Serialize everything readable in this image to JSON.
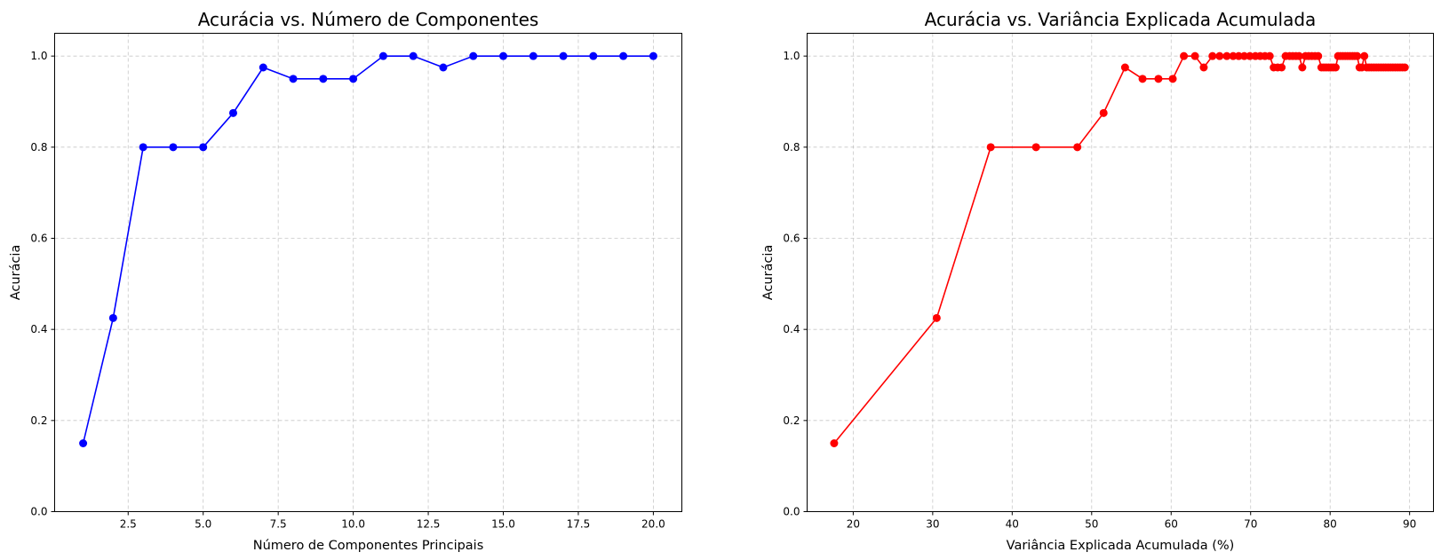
{
  "chart_data": [
    {
      "type": "line",
      "title": "Acurácia vs. Número de Componentes",
      "xlabel": "Número de Componentes Principais",
      "ylabel": "Acurácia",
      "xlim": [
        0.05,
        20.95
      ],
      "ylim": [
        0,
        1.05
      ],
      "xticks": [
        2.5,
        5.0,
        7.5,
        10.0,
        12.5,
        15.0,
        17.5,
        20.0
      ],
      "xtick_labels": [
        "2.5",
        "5.0",
        "7.5",
        "10.0",
        "12.5",
        "15.0",
        "17.5",
        "20.0"
      ],
      "yticks": [
        0.0,
        0.2,
        0.4,
        0.6,
        0.8,
        1.0
      ],
      "ytick_labels": [
        "0.0",
        "0.2",
        "0.4",
        "0.6",
        "0.8",
        "1.0"
      ],
      "grid": true,
      "series": [
        {
          "color": "#0000ff",
          "marker": "circle",
          "x": [
            1,
            2,
            3,
            4,
            5,
            6,
            7,
            8,
            9,
            10,
            11,
            12,
            13,
            14,
            15,
            16,
            17,
            18,
            19,
            20
          ],
          "y": [
            0.15,
            0.425,
            0.8,
            0.8,
            0.8,
            0.875,
            0.975,
            0.95,
            0.95,
            0.95,
            1.0,
            1.0,
            0.975,
            1.0,
            1.0,
            1.0,
            1.0,
            1.0,
            1.0,
            1.0
          ]
        }
      ]
    },
    {
      "type": "line",
      "title": "Acurácia vs. Variância Explicada Acumulada",
      "xlabel": "Variância Explicada Acumulada (%)",
      "ylabel": "Acurácia",
      "xlim": [
        14.2,
        93.0
      ],
      "ylim": [
        0,
        1.05
      ],
      "xticks": [
        20,
        30,
        40,
        50,
        60,
        70,
        80,
        90
      ],
      "xtick_labels": [
        "20",
        "30",
        "40",
        "50",
        "60",
        "70",
        "80",
        "90"
      ],
      "yticks": [
        0.0,
        0.2,
        0.4,
        0.6,
        0.8,
        1.0
      ],
      "ytick_labels": [
        "0.0",
        "0.2",
        "0.4",
        "0.6",
        "0.8",
        "1.0"
      ],
      "grid": true,
      "series": [
        {
          "color": "#ff0000",
          "marker": "circle",
          "x": [
            17.6,
            30.5,
            37.3,
            43.0,
            48.2,
            51.5,
            54.2,
            56.4,
            58.4,
            60.2,
            61.6,
            63.0,
            64.1,
            65.2,
            66.1,
            67.0,
            67.8,
            68.5,
            69.2,
            69.9,
            70.6,
            71.2,
            71.8,
            72.4,
            72.9,
            73.4,
            73.9,
            74.4,
            74.9,
            75.3,
            75.7,
            76.1,
            76.5,
            76.9,
            77.3,
            77.7,
            78.1,
            78.5,
            78.9,
            79.2,
            79.5,
            79.8,
            80.1,
            80.4,
            80.7,
            81.0,
            81.3,
            81.6,
            81.9,
            82.2,
            82.5,
            82.8,
            83.1,
            83.4,
            83.7,
            84.0,
            84.3,
            84.6,
            84.9,
            85.2,
            85.5,
            85.8,
            86.1,
            86.4,
            86.7,
            87.0,
            87.3,
            87.6,
            87.9,
            88.2,
            88.5,
            88.8,
            89.1,
            89.4
          ],
          "y": [
            0.15,
            0.425,
            0.8,
            0.8,
            0.8,
            0.875,
            0.975,
            0.95,
            0.95,
            0.95,
            1.0,
            1.0,
            0.975,
            1.0,
            1.0,
            1.0,
            1.0,
            1.0,
            1.0,
            1.0,
            1.0,
            1.0,
            1.0,
            1.0,
            0.975,
            0.975,
            0.975,
            1.0,
            1.0,
            1.0,
            1.0,
            1.0,
            0.975,
            1.0,
            1.0,
            1.0,
            1.0,
            1.0,
            0.975,
            0.975,
            0.975,
            0.975,
            0.975,
            0.975,
            0.975,
            1.0,
            1.0,
            1.0,
            1.0,
            1.0,
            1.0,
            1.0,
            1.0,
            1.0,
            0.975,
            0.975,
            1.0,
            0.975,
            0.975,
            0.975,
            0.975,
            0.975,
            0.975,
            0.975,
            0.975,
            0.975,
            0.975,
            0.975,
            0.975,
            0.975,
            0.975,
            0.975,
            0.975,
            0.975
          ]
        }
      ]
    }
  ]
}
